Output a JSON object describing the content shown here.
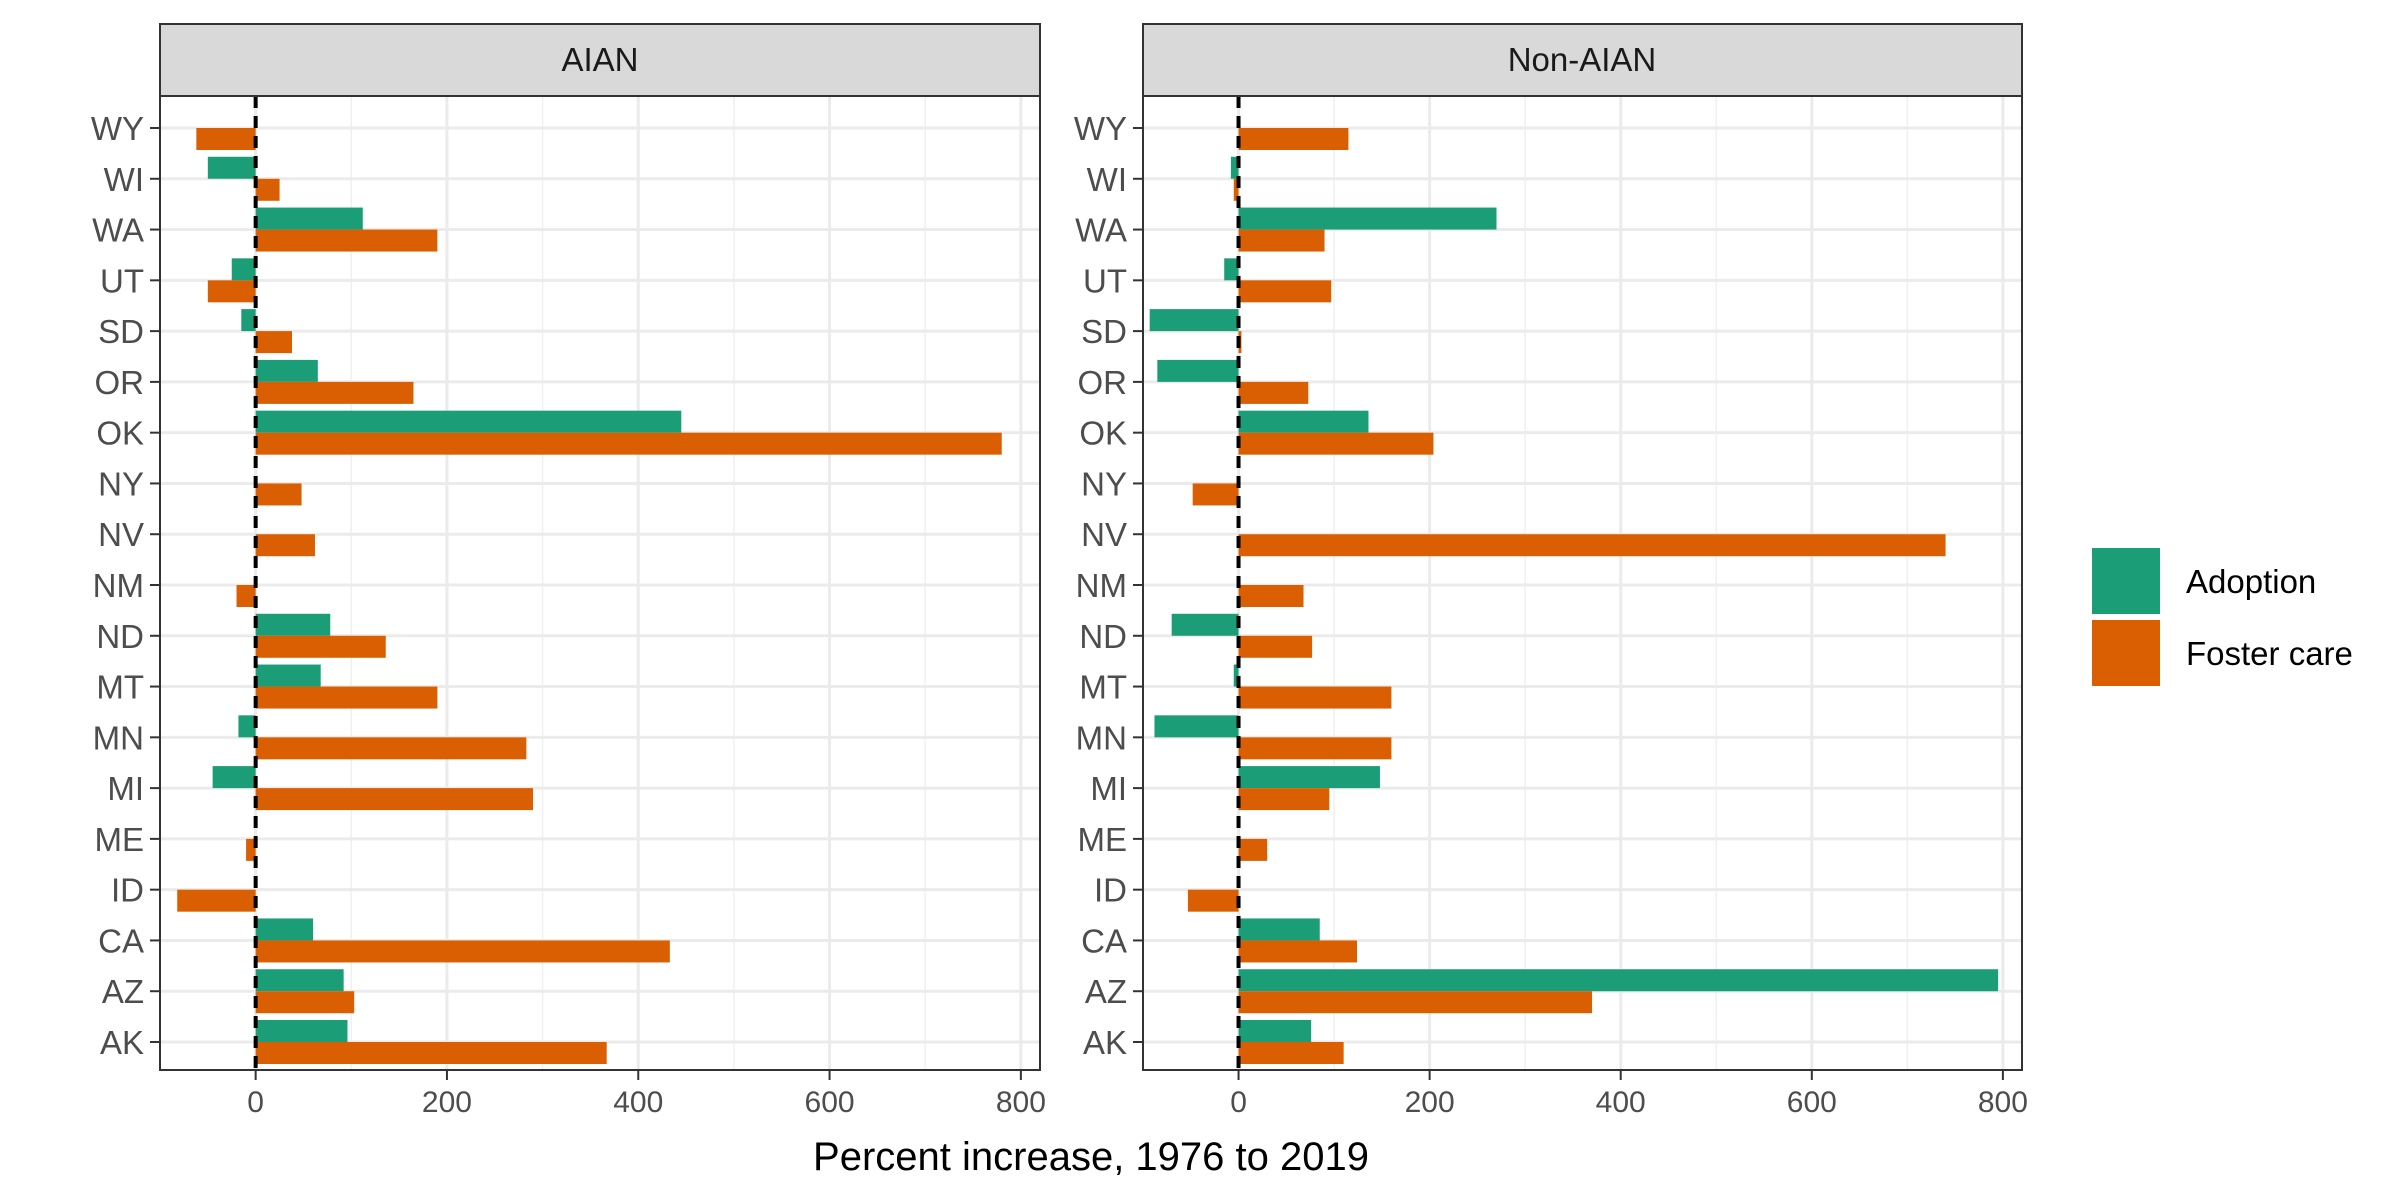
{
  "chart_data": {
    "type": "bar",
    "orientation": "horizontal",
    "facets": [
      "AIAN",
      "Non-AIAN"
    ],
    "categories": [
      "AK",
      "AZ",
      "CA",
      "ID",
      "ME",
      "MI",
      "MN",
      "MT",
      "ND",
      "NM",
      "NV",
      "NY",
      "OK",
      "OR",
      "SD",
      "UT",
      "WA",
      "WI",
      "WY"
    ],
    "xlabel": "Percent increase, 1976 to 2019",
    "ylabel": "",
    "xlim": [
      -100,
      820
    ],
    "x_ticks": [
      0,
      200,
      400,
      600,
      800
    ],
    "grid": true,
    "reference_line": {
      "x": 0,
      "style": "dashed"
    },
    "legend": {
      "position": "right"
    },
    "series": [
      {
        "name": "Adoption",
        "color": "#1B9E77",
        "values": {
          "AIAN": [
            96,
            92,
            60,
            null,
            null,
            -45,
            -18,
            68,
            78,
            null,
            null,
            null,
            445,
            65,
            -15,
            -25,
            112,
            -50,
            null
          ],
          "Non-AIAN": [
            76,
            795,
            85,
            null,
            null,
            148,
            -88,
            -5,
            -70,
            null,
            null,
            null,
            136,
            -85,
            -93,
            -15,
            270,
            -8,
            null
          ]
        }
      },
      {
        "name": "Foster care",
        "color": "#D95F02",
        "values": {
          "AIAN": [
            367,
            103,
            433,
            -82,
            -10,
            290,
            283,
            190,
            136,
            -20,
            62,
            48,
            780,
            165,
            38,
            -50,
            190,
            25,
            -62
          ],
          "Non-AIAN": [
            110,
            370,
            124,
            -53,
            30,
            95,
            160,
            160,
            77,
            68,
            740,
            -48,
            204,
            73,
            3,
            97,
            90,
            -5,
            115
          ]
        }
      }
    ]
  }
}
